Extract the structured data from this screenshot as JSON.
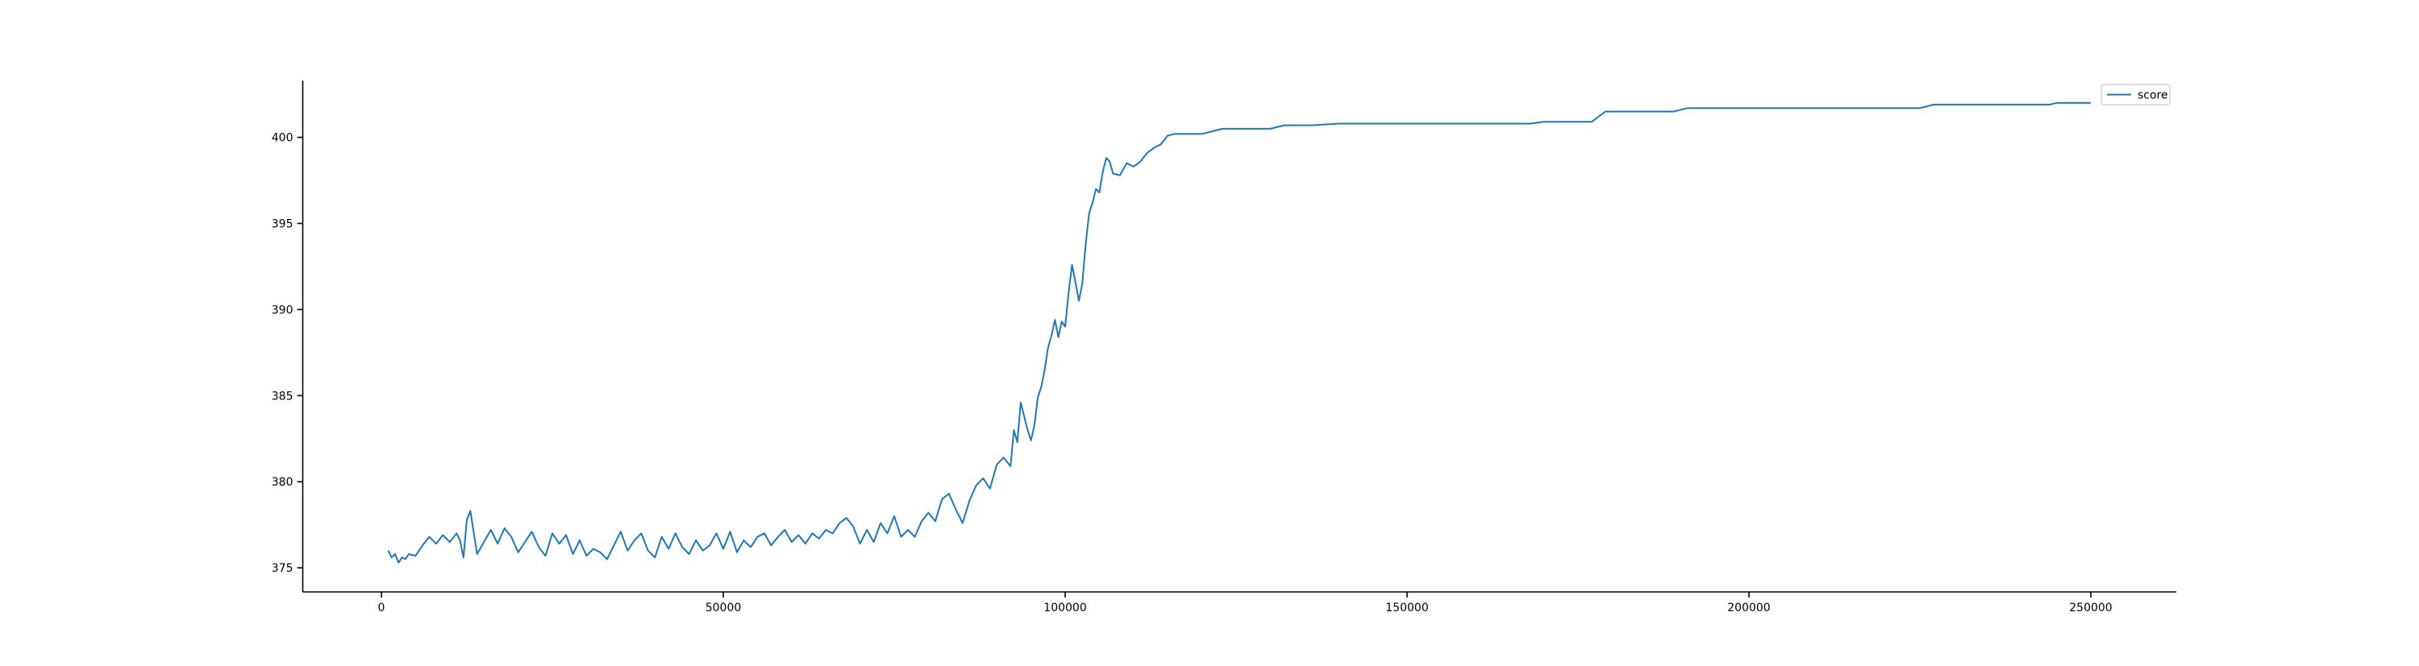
{
  "chart_data": {
    "type": "line",
    "title": "",
    "xlabel": "",
    "ylabel": "",
    "xlim": [
      -11500,
      262500
    ],
    "ylim": [
      373.6,
      403.3
    ],
    "xticks": [
      0,
      50000,
      100000,
      150000,
      200000,
      250000
    ],
    "xtick_labels": [
      "0",
      "50000",
      "100000",
      "150000",
      "200000",
      "250000"
    ],
    "yticks": [
      375,
      380,
      385,
      390,
      395,
      400
    ],
    "ytick_labels": [
      "375",
      "380",
      "385",
      "390",
      "395",
      "400"
    ],
    "grid": false,
    "legend": "upper right",
    "spines": [
      "left",
      "bottom"
    ],
    "series": [
      {
        "name": "score",
        "color": "#1f77b4",
        "x": [
          1000,
          1500,
          2000,
          2500,
          3000,
          3500,
          4000,
          5000,
          6000,
          7000,
          8000,
          9000,
          10000,
          11000,
          11500,
          12000,
          12500,
          13000,
          14000,
          15000,
          16000,
          17000,
          18000,
          19000,
          20000,
          21000,
          22000,
          23000,
          24000,
          25000,
          26000,
          27000,
          28000,
          29000,
          30000,
          31000,
          32000,
          33000,
          34000,
          35000,
          36000,
          37000,
          38000,
          39000,
          40000,
          41000,
          42000,
          43000,
          44000,
          45000,
          46000,
          47000,
          48000,
          49000,
          50000,
          51000,
          52000,
          53000,
          54000,
          55000,
          56000,
          57000,
          58000,
          59000,
          60000,
          61000,
          62000,
          63000,
          64000,
          65000,
          66000,
          67000,
          68000,
          69000,
          70000,
          71000,
          72000,
          73000,
          74000,
          75000,
          76000,
          77000,
          78000,
          79000,
          80000,
          81000,
          82000,
          83000,
          84000,
          85000,
          86000,
          87000,
          88000,
          89000,
          90000,
          91000,
          92000,
          92500,
          93000,
          93500,
          94000,
          94500,
          95000,
          95500,
          96000,
          96500,
          97000,
          97500,
          98000,
          98500,
          99000,
          99500,
          100000,
          100500,
          101000,
          101500,
          102000,
          102500,
          103000,
          103500,
          104000,
          104500,
          105000,
          105500,
          106000,
          106500,
          107000,
          108000,
          109000,
          110000,
          111000,
          112000,
          113000,
          114000,
          115000,
          116000,
          117000,
          118000,
          120000,
          122000,
          123000,
          124000,
          125000,
          130000,
          132000,
          134000,
          136000,
          140000,
          143000,
          145000,
          150000,
          160000,
          168000,
          170000,
          175000,
          177000,
          179000,
          185000,
          189000,
          191000,
          200000,
          210000,
          220000,
          225000,
          226000,
          227000,
          235000,
          240000,
          243000,
          244000,
          245000,
          250000
        ],
        "values": [
          376.0,
          375.6,
          375.8,
          375.3,
          375.6,
          375.5,
          375.8,
          375.7,
          376.3,
          376.8,
          376.4,
          376.9,
          376.5,
          377.0,
          376.6,
          375.6,
          377.8,
          378.3,
          375.8,
          376.5,
          377.2,
          376.4,
          377.3,
          376.8,
          375.9,
          376.5,
          377.1,
          376.2,
          375.7,
          377.0,
          376.4,
          376.9,
          375.8,
          376.6,
          375.7,
          376.1,
          375.9,
          375.5,
          376.3,
          377.1,
          376.0,
          376.6,
          377.0,
          376.0,
          375.6,
          376.8,
          376.1,
          377.0,
          376.2,
          375.8,
          376.6,
          376.0,
          376.3,
          377.0,
          376.1,
          377.1,
          375.9,
          376.6,
          376.2,
          376.8,
          377.0,
          376.3,
          376.8,
          377.2,
          376.5,
          376.9,
          376.4,
          377.0,
          376.7,
          377.2,
          377.0,
          377.6,
          377.9,
          377.4,
          376.4,
          377.2,
          376.5,
          377.6,
          377.0,
          378.0,
          376.8,
          377.2,
          376.8,
          377.7,
          378.2,
          377.7,
          379.0,
          379.3,
          378.4,
          377.6,
          378.9,
          379.8,
          380.2,
          379.6,
          381.0,
          381.4,
          380.9,
          383.0,
          382.3,
          384.6,
          383.8,
          383.0,
          382.4,
          383.3,
          384.9,
          385.5,
          386.5,
          387.8,
          388.5,
          389.4,
          388.4,
          389.3,
          389.0,
          391.0,
          392.6,
          391.6,
          390.5,
          391.5,
          393.8,
          395.6,
          396.2,
          397.0,
          396.8,
          398.0,
          398.8,
          398.6,
          397.9,
          397.8,
          398.5,
          398.3,
          398.6,
          399.1,
          399.4,
          399.6,
          400.1,
          400.2,
          400.2,
          400.2,
          400.2,
          400.4,
          400.5,
          400.5,
          400.5,
          400.5,
          400.7,
          400.7,
          400.7,
          400.8,
          400.8,
          400.8,
          400.8,
          400.8,
          400.8,
          400.9,
          400.9,
          400.9,
          401.5,
          401.5,
          401.5,
          401.7,
          401.7,
          401.7,
          401.7,
          401.7,
          401.8,
          401.9,
          401.9,
          401.9,
          401.9,
          401.9,
          402.0,
          402.0
        ]
      }
    ]
  }
}
